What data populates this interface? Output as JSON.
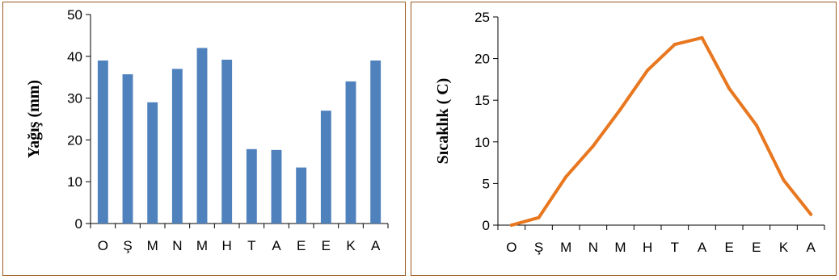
{
  "chart_data": [
    {
      "type": "bar",
      "title": "",
      "xlabel": "",
      "ylabel": "Yağış (mm)",
      "ylim": [
        0,
        50
      ],
      "yticks": [
        0,
        10,
        20,
        30,
        40,
        50
      ],
      "categories": [
        "O",
        "Ş",
        "M",
        "N",
        "M",
        "H",
        "T",
        "A",
        "E",
        "E",
        "K",
        "A"
      ],
      "values": [
        39,
        35.7,
        29,
        37,
        42,
        39.2,
        17.8,
        17.6,
        13.4,
        27,
        34,
        39
      ],
      "color": "#4f81bd",
      "grid": false
    },
    {
      "type": "line",
      "title": "",
      "xlabel": "",
      "ylabel": "Sıcaklık ( C)",
      "ylim": [
        0,
        25
      ],
      "yticks": [
        0,
        5,
        10,
        15,
        20,
        25
      ],
      "categories": [
        "O",
        "Ş",
        "M",
        "N",
        "M",
        "H",
        "T",
        "A",
        "E",
        "E",
        "K",
        "A"
      ],
      "values": [
        0,
        0.9,
        5.8,
        9.5,
        13.9,
        18.6,
        21.7,
        22.5,
        16.4,
        12,
        5.4,
        1.3
      ],
      "color": "#e8771f",
      "grid": false
    }
  ]
}
